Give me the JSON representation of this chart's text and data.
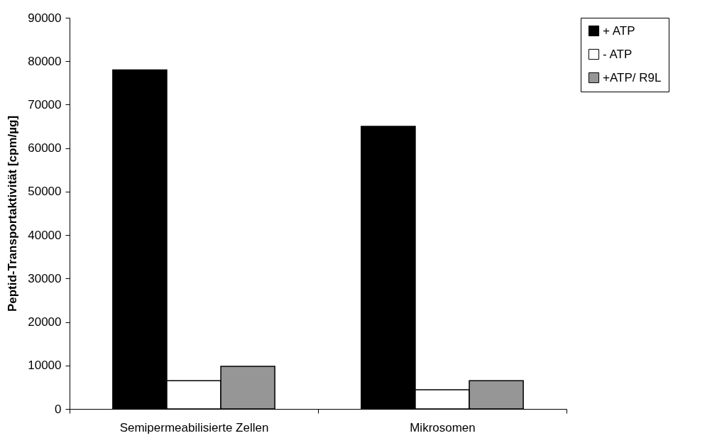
{
  "chart_data": {
    "type": "bar",
    "ylabel": "Peptid-Transportaktivität [cpm/µg]",
    "categories": [
      "Semipermeabilisierte Zellen",
      "Mikrosomen"
    ],
    "series": [
      {
        "name": "+ ATP",
        "color": "#000000",
        "values": [
          78000,
          65000
        ]
      },
      {
        "name": "- ATP",
        "color": "#ffffff",
        "values": [
          6500,
          4400
        ]
      },
      {
        "name": "+ATP/ R9L",
        "color": "#969696",
        "values": [
          9800,
          6500
        ]
      }
    ],
    "ylim": [
      0,
      90000
    ],
    "yticks": [
      0,
      10000,
      20000,
      30000,
      40000,
      50000,
      60000,
      70000,
      80000,
      90000
    ],
    "grid": false,
    "legend": "right"
  }
}
